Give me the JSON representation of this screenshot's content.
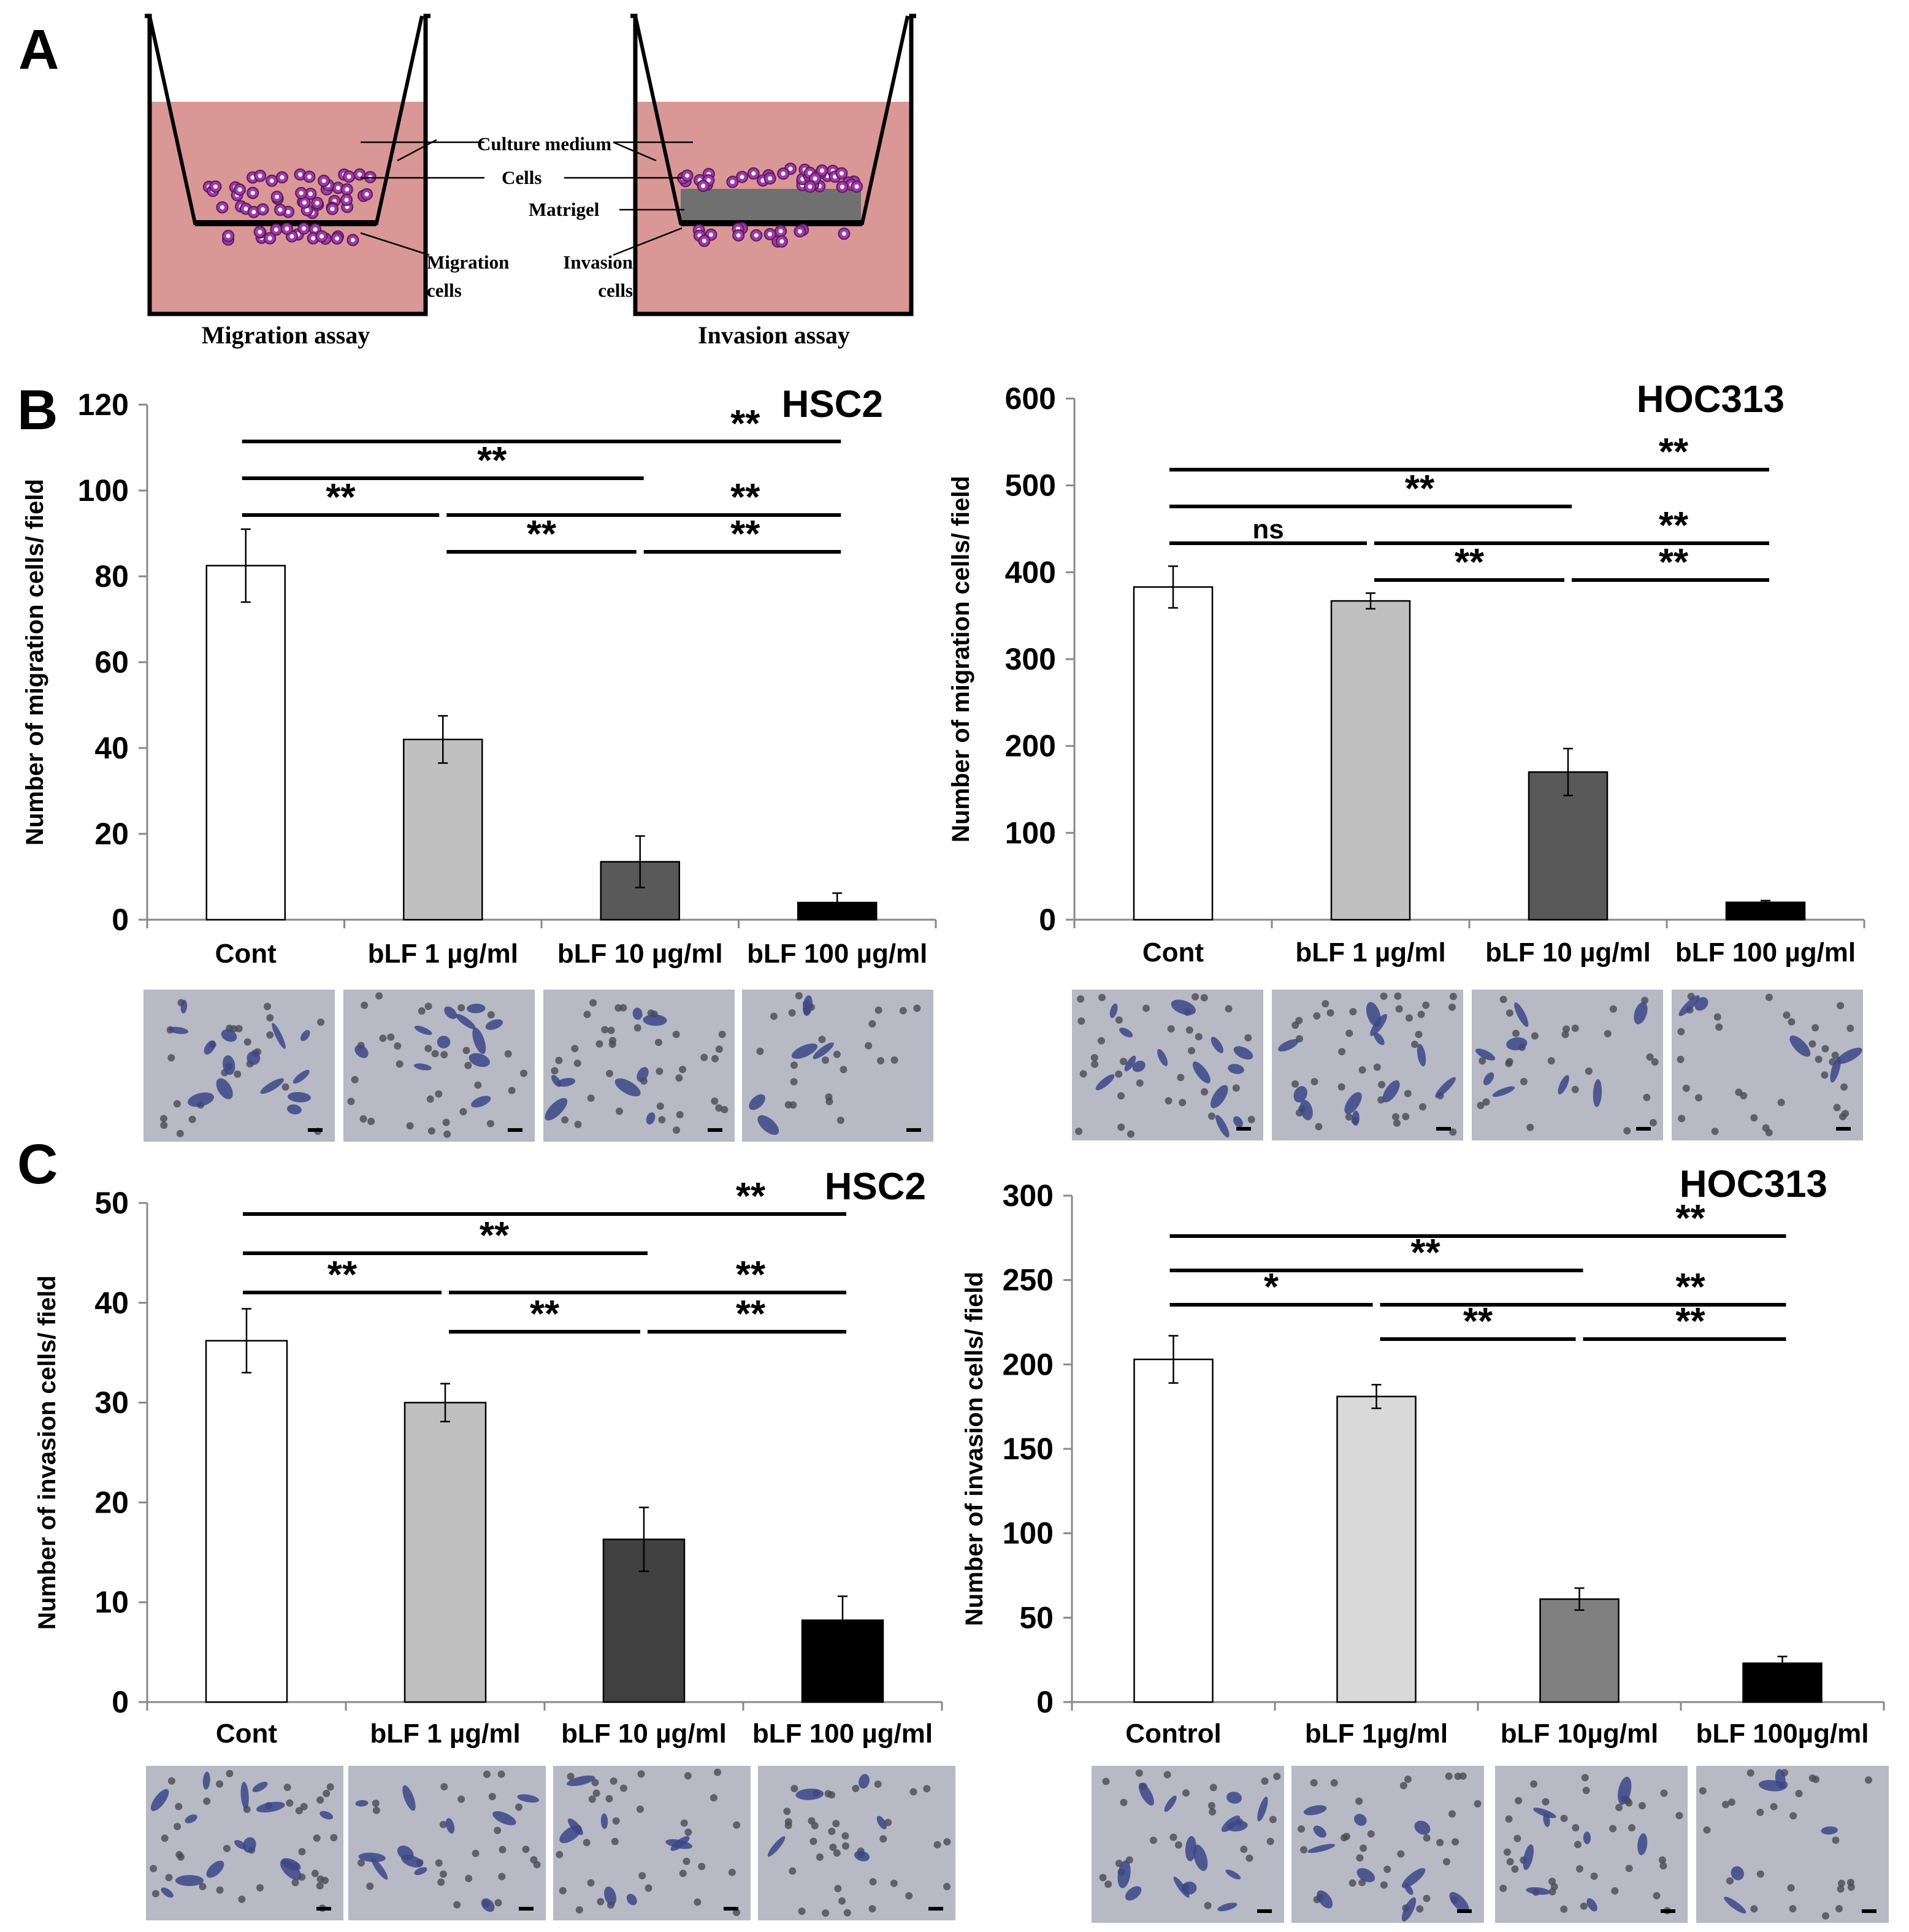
{
  "figure": {
    "panel_labels": {
      "a": "A",
      "b": "B",
      "c": "C"
    },
    "diagram": {
      "labels": {
        "culture_medium": "Culture medium",
        "cells": "Cells",
        "matrigel": "Matrigel",
        "migration_cells_line1": "Migration",
        "migration_cells_line2": "cells",
        "invasion_cells_line1": "Invasion",
        "invasion_cells_line2": "cells",
        "migration_assay": "Migration assay",
        "invasion_assay": "Invasion assay"
      },
      "colors": {
        "medium": "#d99796",
        "cell": "#a23aa6",
        "membrane": "#000000"
      }
    },
    "micrograph_colors": {
      "background": "#b7b9c4",
      "cell_stain": "#3c4787"
    }
  },
  "chart_data": [
    {
      "id": "b-hsc2",
      "type": "bar",
      "title": "HSC2",
      "ylabel": "Number of migration cells/ field",
      "xlabel": "",
      "ylim": [
        0,
        120
      ],
      "yticks": [
        0,
        20,
        40,
        60,
        80,
        100,
        120
      ],
      "categories": [
        "Cont",
        "bLF 1 µg/ml",
        "bLF 10 µg/ml",
        "bLF 100 µg/ml"
      ],
      "values": [
        82.5,
        42,
        13.5,
        4
      ],
      "errors": [
        8.5,
        5.5,
        6,
        2.2
      ],
      "bar_colors": [
        "#ffffff",
        "#c0c0c0",
        "#595959",
        "#000000"
      ],
      "significance": [
        {
          "from": 0,
          "to": 3,
          "label": "**"
        },
        {
          "from": 0,
          "to": 2,
          "label": "**"
        },
        {
          "from": 0,
          "to": 1,
          "label": "**"
        },
        {
          "from": 1,
          "to": 3,
          "label": "**"
        },
        {
          "from": 1,
          "to": 2,
          "label": "**"
        },
        {
          "from": 2,
          "to": 3,
          "label": "**"
        }
      ]
    },
    {
      "id": "b-hoc313",
      "type": "bar",
      "title": "HOC313",
      "ylabel": "Number of migration cells/ field",
      "xlabel": "",
      "ylim": [
        0,
        600
      ],
      "yticks": [
        0,
        100,
        200,
        300,
        400,
        500,
        600
      ],
      "categories": [
        "Cont",
        "bLF 1 µg/ml",
        "bLF 10 µg/ml",
        "bLF 100 µg/ml"
      ],
      "values": [
        383,
        367,
        170,
        20
      ],
      "errors": [
        24,
        9,
        27,
        2
      ],
      "bar_colors": [
        "#ffffff",
        "#c0c0c0",
        "#595959",
        "#000000"
      ],
      "significance": [
        {
          "from": 0,
          "to": 3,
          "label": "**"
        },
        {
          "from": 0,
          "to": 2,
          "label": "**"
        },
        {
          "from": 0,
          "to": 1,
          "label": "ns"
        },
        {
          "from": 1,
          "to": 3,
          "label": "**"
        },
        {
          "from": 1,
          "to": 2,
          "label": "**"
        },
        {
          "from": 2,
          "to": 3,
          "label": "**"
        }
      ]
    },
    {
      "id": "c-hsc2",
      "type": "bar",
      "title": "HSC2",
      "ylabel": "Number of invasion cells/ field",
      "xlabel": "",
      "ylim": [
        0,
        50
      ],
      "yticks": [
        0,
        10,
        20,
        30,
        40,
        50
      ],
      "categories": [
        "Cont",
        "bLF 1 µg/ml",
        "bLF 10 µg/ml",
        "bLF 100 µg/ml"
      ],
      "values": [
        36.2,
        30,
        16.3,
        8.2
      ],
      "errors": [
        3.2,
        1.9,
        3.2,
        2.4
      ],
      "bar_colors": [
        "#ffffff",
        "#bfbfbf",
        "#404040",
        "#000000"
      ],
      "significance": [
        {
          "from": 0,
          "to": 3,
          "label": "**"
        },
        {
          "from": 0,
          "to": 2,
          "label": "**"
        },
        {
          "from": 0,
          "to": 1,
          "label": "**"
        },
        {
          "from": 1,
          "to": 3,
          "label": "**"
        },
        {
          "from": 1,
          "to": 2,
          "label": "**"
        },
        {
          "from": 2,
          "to": 3,
          "label": "**"
        }
      ]
    },
    {
      "id": "c-hoc313",
      "type": "bar",
      "title": "HOC313",
      "ylabel": "Number of invasion cells/ field",
      "xlabel": "",
      "ylim": [
        0,
        300
      ],
      "yticks": [
        0,
        50,
        100,
        150,
        200,
        250,
        300
      ],
      "categories": [
        "Control",
        "bLF 1µg/ml",
        "bLF 10µg/ml",
        "bLF 100µg/ml"
      ],
      "values": [
        203,
        181,
        61,
        23
      ],
      "errors": [
        14,
        7,
        6.5,
        4
      ],
      "bar_colors": [
        "#ffffff",
        "#d9d9d9",
        "#808080",
        "#000000"
      ],
      "significance": [
        {
          "from": 0,
          "to": 3,
          "label": "**"
        },
        {
          "from": 0,
          "to": 2,
          "label": "**"
        },
        {
          "from": 0,
          "to": 1,
          "label": "*"
        },
        {
          "from": 1,
          "to": 3,
          "label": "**"
        },
        {
          "from": 1,
          "to": 2,
          "label": "**"
        },
        {
          "from": 2,
          "to": 3,
          "label": "**"
        }
      ]
    }
  ]
}
